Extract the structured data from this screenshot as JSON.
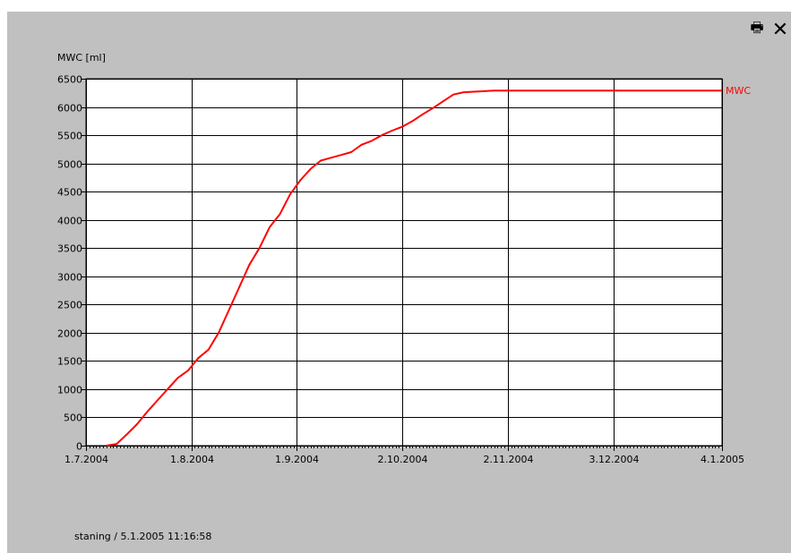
{
  "toolbar": {
    "print_icon": "printer-icon",
    "close_icon": "close-icon",
    "close_glyph": "✕",
    "print_glyph": "🖶"
  },
  "footer": {
    "status": "staning / 5.1.2005 11:16:58"
  },
  "colors": {
    "panel": "#c0c0c0",
    "plot_bg": "#ffffff",
    "grid": "#000000",
    "series": "#ff0000"
  },
  "chart_data": {
    "type": "line",
    "title": "",
    "xlabel": "",
    "ylabel": "MWC [ml]",
    "ylim": [
      0,
      6500
    ],
    "xlim": [
      "2004-07-01",
      "2005-01-04"
    ],
    "yticks": [
      0,
      500,
      1000,
      1500,
      2000,
      2500,
      3000,
      3500,
      4000,
      4500,
      5000,
      5500,
      6000,
      6500
    ],
    "xticks": [
      {
        "date": "2004-07-01",
        "label": "1.7.2004"
      },
      {
        "date": "2004-08-01",
        "label": "1.8.2004"
      },
      {
        "date": "2004-09-01",
        "label": "1.9.2004"
      },
      {
        "date": "2004-10-02",
        "label": "2.10.2004"
      },
      {
        "date": "2004-11-02",
        "label": "2.11.2004"
      },
      {
        "date": "2004-12-03",
        "label": "3.12.2004"
      },
      {
        "date": "2005-01-04",
        "label": "4.1.2005"
      }
    ],
    "grid": true,
    "series": [
      {
        "name": "MWC",
        "color": "#ff0000",
        "x": [
          "2004-07-07",
          "2004-07-10",
          "2004-07-13",
          "2004-07-16",
          "2004-07-19",
          "2004-07-22",
          "2004-07-25",
          "2004-07-28",
          "2004-07-31",
          "2004-08-03",
          "2004-08-06",
          "2004-08-09",
          "2004-08-12",
          "2004-08-15",
          "2004-08-18",
          "2004-08-21",
          "2004-08-24",
          "2004-08-27",
          "2004-08-30",
          "2004-09-02",
          "2004-09-05",
          "2004-09-08",
          "2004-09-11",
          "2004-09-14",
          "2004-09-17",
          "2004-09-20",
          "2004-09-23",
          "2004-09-26",
          "2004-09-29",
          "2004-10-02",
          "2004-10-05",
          "2004-10-08",
          "2004-10-11",
          "2004-10-14",
          "2004-10-17",
          "2004-10-20",
          "2004-10-23",
          "2004-10-26",
          "2004-10-29",
          "2004-11-01",
          "2004-11-04",
          "2004-11-10",
          "2004-11-20",
          "2004-12-01",
          "2004-12-15",
          "2005-01-04"
        ],
        "y": [
          0,
          30,
          200,
          380,
          600,
          800,
          1000,
          1200,
          1330,
          1550,
          1700,
          2000,
          2400,
          2800,
          3200,
          3500,
          3870,
          4100,
          4450,
          4700,
          4900,
          5050,
          5100,
          5150,
          5200,
          5330,
          5400,
          5500,
          5580,
          5650,
          5750,
          5870,
          5980,
          6100,
          6220,
          6260,
          6270,
          6280,
          6290,
          6290,
          6290,
          6290,
          6290,
          6290,
          6290,
          6290
        ]
      }
    ]
  }
}
